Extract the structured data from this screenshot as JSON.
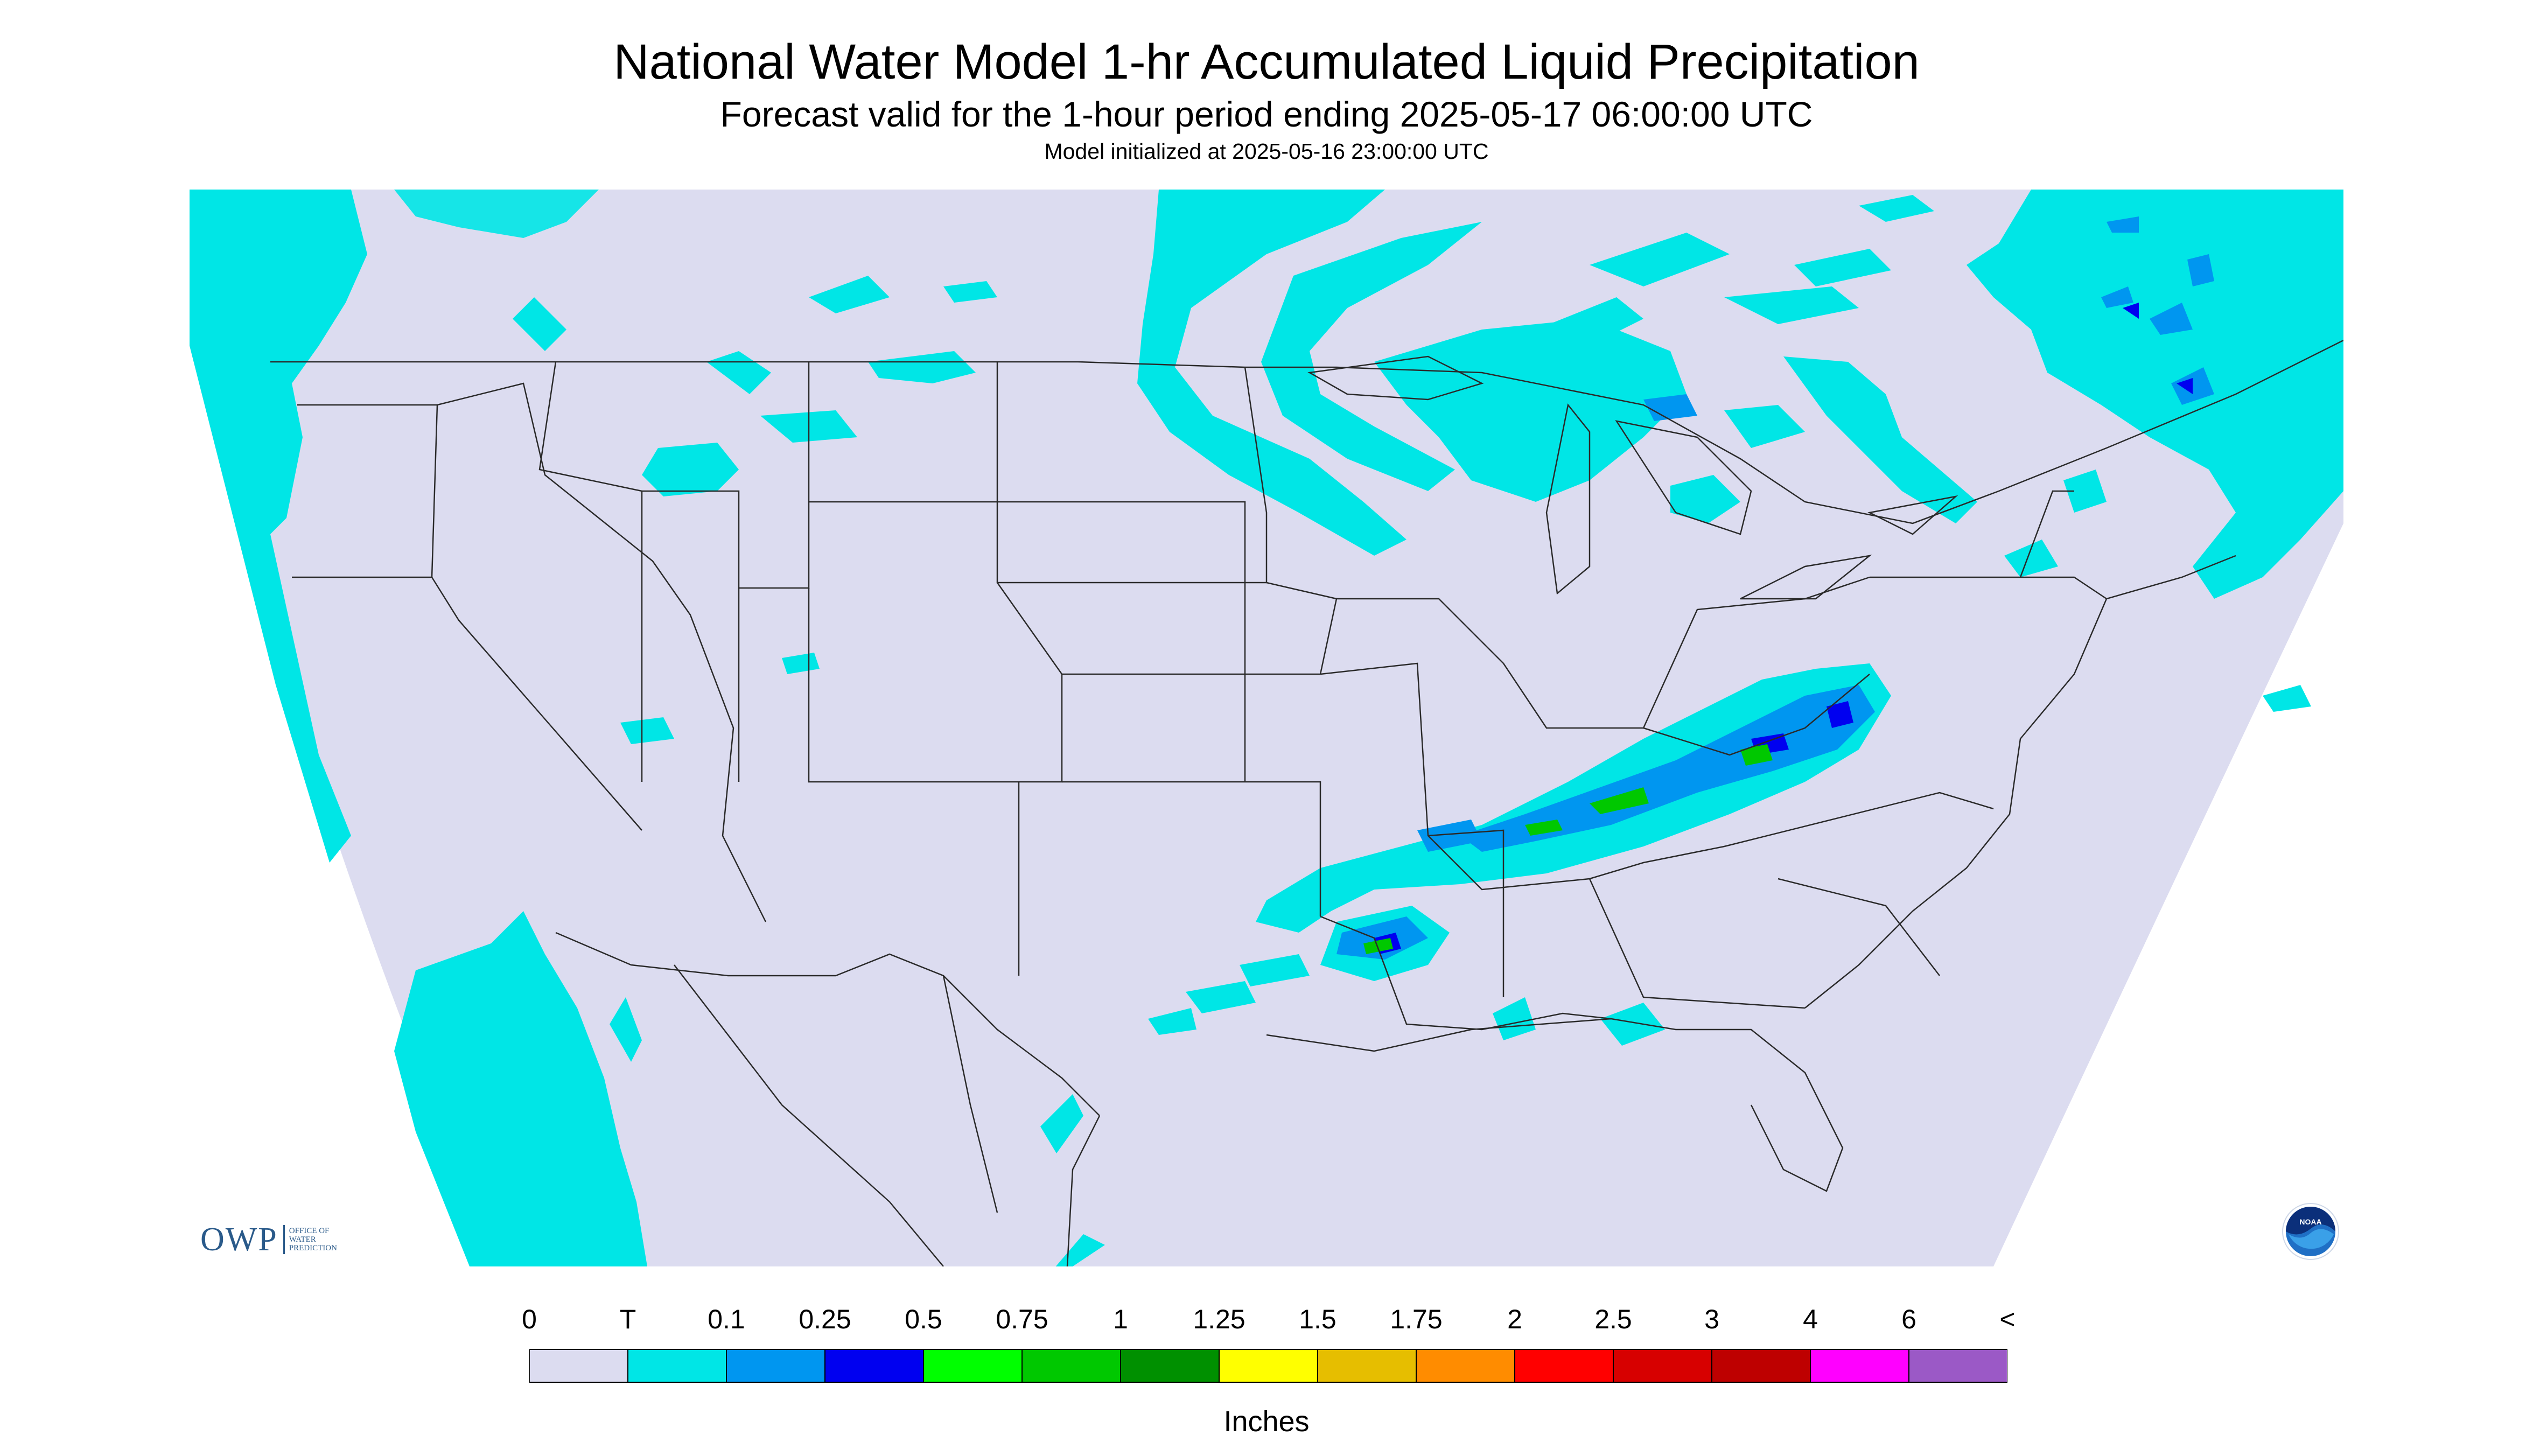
{
  "header": {
    "title": "National Water Model 1-hr Accumulated Liquid Precipitation",
    "subtitle": "Forecast valid for the 1-hour period ending 2025-05-17 06:00:00 UTC",
    "init": "Model initialized at 2025-05-16 23:00:00 UTC"
  },
  "legend": {
    "labels": [
      "0",
      "T",
      "0.1",
      "0.25",
      "0.5",
      "0.75",
      "1",
      "1.25",
      "1.5",
      "1.75",
      "2",
      "2.5",
      "3",
      "4",
      "6",
      "<"
    ],
    "colors": [
      "#dcdcf0",
      "#00e6e6",
      "#0096f0",
      "#0000f0",
      "#00ff00",
      "#00c800",
      "#009000",
      "#ffff00",
      "#e6be00",
      "#ff8c00",
      "#ff0000",
      "#d70000",
      "#be0000",
      "#ff00ff",
      "#9b59c6"
    ],
    "units": "Inches"
  },
  "map": {
    "background_color": "#dcdcf0",
    "trace_color": "#00e6e6",
    "light_color": "#0096f0",
    "moderate_color": "#0000f0",
    "heavy_color": "#00c800"
  },
  "logos": {
    "owp_main": "OWP",
    "owp_line1": "OFFICE OF",
    "owp_line2": "WATER",
    "owp_line3": "PREDICTION",
    "noaa_text": "NOAA",
    "noaa_icon": "noaa-seal-icon"
  }
}
